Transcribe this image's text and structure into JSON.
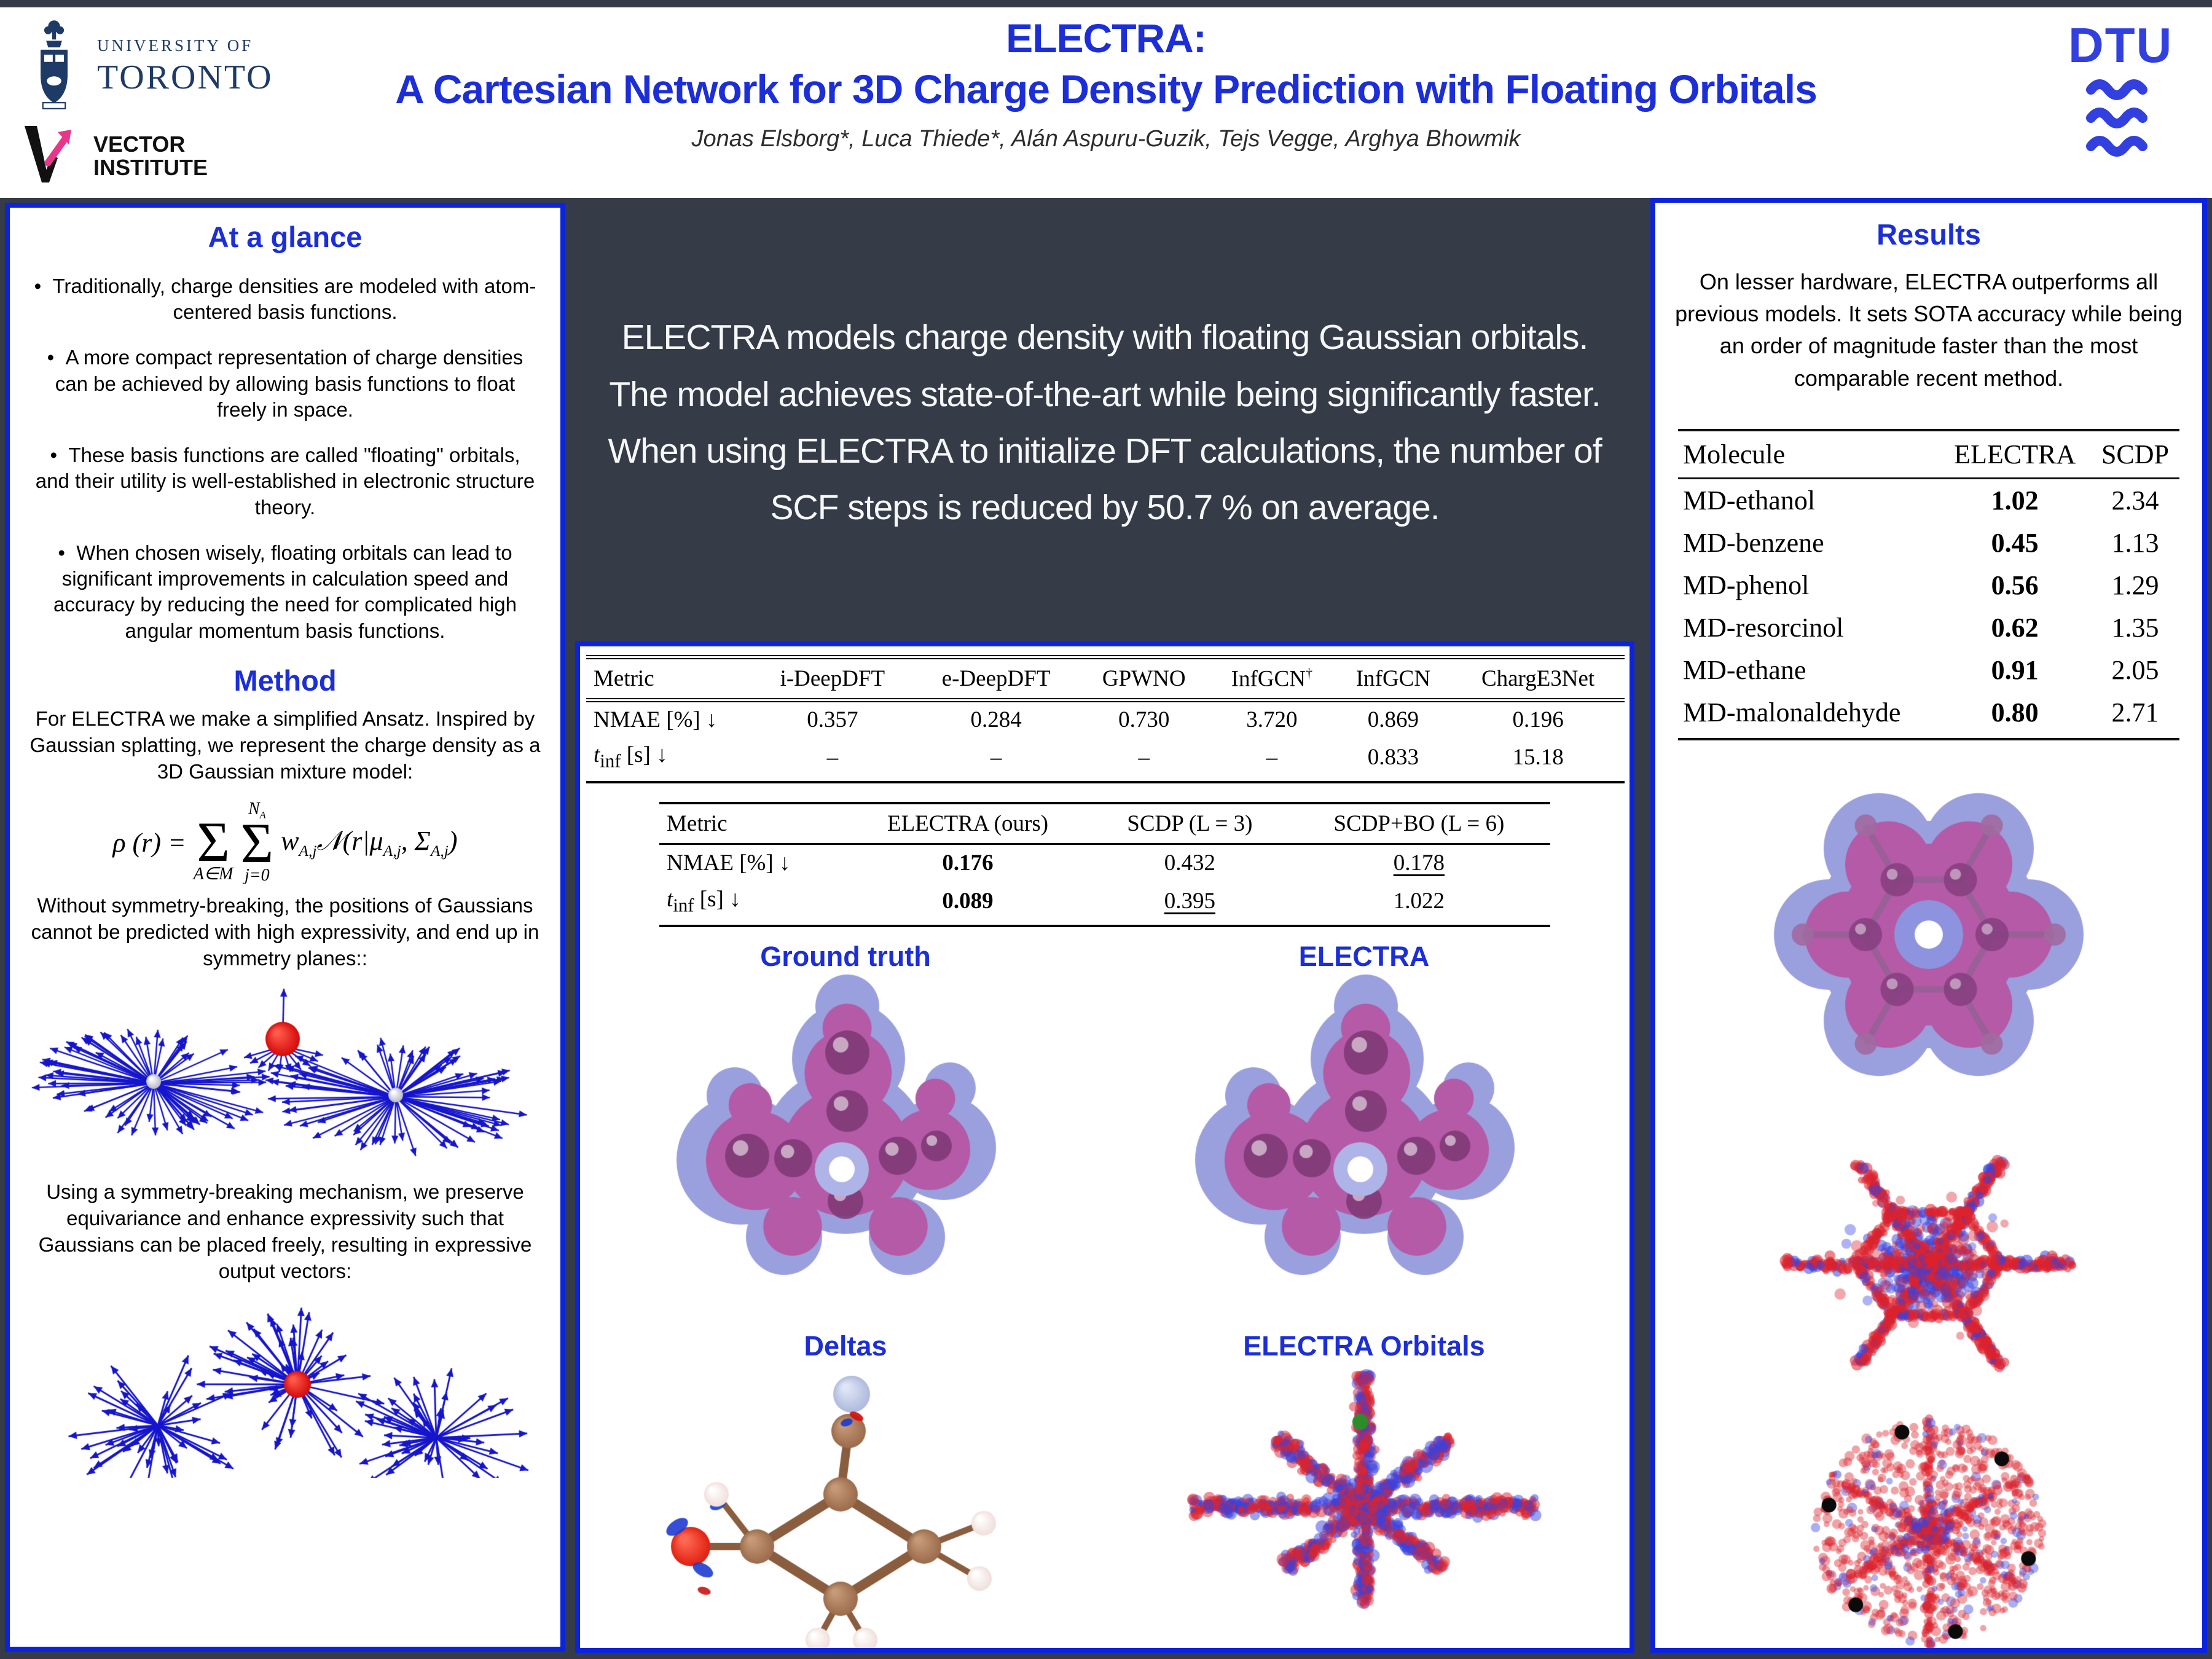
{
  "colors": {
    "accent_blue": "#1b2ed8",
    "border_blue": "#0b23dc",
    "dark_bg": "#353b47",
    "uoft_navy": "#1e3a66",
    "vector_pink": "#e9368b",
    "dtu_blue": "#3240e0",
    "arrow_blue": "#1515cc",
    "scatter_red": "#e03030",
    "scatter_blue": "#3844dd",
    "density_outer": "#9aa0dd",
    "density_inner": "#b45aa6",
    "density_atom": "#8d4587",
    "atom_brown": "#9b6b4b",
    "atom_hydrogen": "#f0dfdb",
    "atom_oxygen": "#e02010",
    "green_dot": "#2a8c2a"
  },
  "header": {
    "uoft": {
      "line1": "UNIVERSITY OF",
      "line2": "TORONTO"
    },
    "vector": {
      "line1": "VECTOR",
      "line2": "INSTITUTE"
    },
    "dtu": {
      "text": "DTU"
    },
    "title_line1": "ELECTRA:",
    "title_line2": "A Cartesian Network for 3D Charge Density Prediction with Floating Orbitals",
    "authors": "Jonas Elsborg*, Luca Thiede*, Alán Aspuru-Guzik, Tejs Vegge, Arghya Bhowmik"
  },
  "glance": {
    "heading": "At a glance",
    "bullets": [
      "Traditionally, charge densities are modeled with atom-centered basis functions.",
      "A more compact representation of charge densities can be achieved by allowing basis functions to float freely in space.",
      "These basis functions are called \"floating\" orbitals, and their utility is well-established in electronic structure theory.",
      "When chosen wisely, floating orbitals can lead to significant improvements in calculation speed and accuracy by reducing the need for complicated high angular momentum basis functions."
    ]
  },
  "method": {
    "heading": "Method",
    "para1": "For ELECTRA we make a simplified Ansatz. Inspired by Gaussian splatting, we represent the charge density as a 3D Gaussian mixture model:",
    "equation": {
      "lhs_rho": "ρ (r) =",
      "sigma": "Σ",
      "sum1_sub": "A∈M",
      "sum2_sup_base": "N",
      "sum2_sup_sub": "A",
      "sum2_sub": "j=0",
      "weight_base": "w",
      "weight_sub": "A,j",
      "normal": "𝒩",
      "open": "(r|μ",
      "mu_sub": "A,j",
      "comma_sigma": ", Σ",
      "sigma_sub": "A,j",
      "close": ")"
    },
    "para2": "Without symmetry-breaking, the positions of Gaussians cannot be predicted with high expressivity, and end up in symmetry planes::",
    "para3": "Using a symmetry-breaking mechanism, we preserve equivariance and enhance expressivity such that Gaussians can be placed freely, resulting in expressive output vectors:"
  },
  "abstract": {
    "text": "ELECTRA models charge density with floating Gaussian orbitals. The model achieves state-of-the-art while being significantly faster. When using ELECTRA to initialize DFT calculations, the number of SCF steps is reduced by 50.7 % on average."
  },
  "benchmark": {
    "table1": {
      "headers": [
        "Metric",
        "i-DeepDFT",
        "e-DeepDFT",
        "GPWNO",
        "InfGCN",
        "InfGCN",
        "ChargE3Net"
      ],
      "header_dagger": "†",
      "row1": {
        "label": "NMAE [%] ↓",
        "values": [
          "0.357",
          "0.284",
          "0.730",
          "3.720",
          "0.869",
          "0.196"
        ]
      },
      "row2": {
        "label_base": "t",
        "label_sub": "inf",
        "label_rest": " [s] ↓",
        "values": [
          "–",
          "–",
          "–",
          "–",
          "0.833",
          "15.18"
        ]
      }
    },
    "table2": {
      "headers": [
        "Metric",
        "ELECTRA (ours)",
        "SCDP (L = 3)",
        "SCDP+BO (L = 6)"
      ],
      "row1": {
        "label": "NMAE [%] ↓",
        "values": [
          "0.176",
          "0.432",
          "0.178"
        ]
      },
      "row2": {
        "label_base": "t",
        "label_sub": "inf",
        "label_rest": " [s] ↓",
        "values": [
          "0.089",
          "0.395",
          "1.022"
        ]
      }
    },
    "figure_labels": {
      "ground_truth": "Ground truth",
      "electra": "ELECTRA",
      "deltas": "Deltas",
      "orbitals": "ELECTRA Orbitals"
    }
  },
  "results": {
    "heading": "Results",
    "para": "On lesser hardware, ELECTRA outperforms all previous models. It sets SOTA accuracy while being an order of magnitude faster than the most comparable recent method.",
    "table": {
      "headers": [
        "Molecule",
        "ELECTRA",
        "SCDP"
      ],
      "rows": [
        [
          "MD-ethanol",
          "1.02",
          "2.34"
        ],
        [
          "MD-benzene",
          "0.45",
          "1.13"
        ],
        [
          "MD-phenol",
          "0.56",
          "1.29"
        ],
        [
          "MD-resorcinol",
          "0.62",
          "1.35"
        ],
        [
          "MD-ethane",
          "0.91",
          "2.05"
        ],
        [
          "MD-malonaldehyde",
          "0.80",
          "2.71"
        ]
      ]
    }
  }
}
